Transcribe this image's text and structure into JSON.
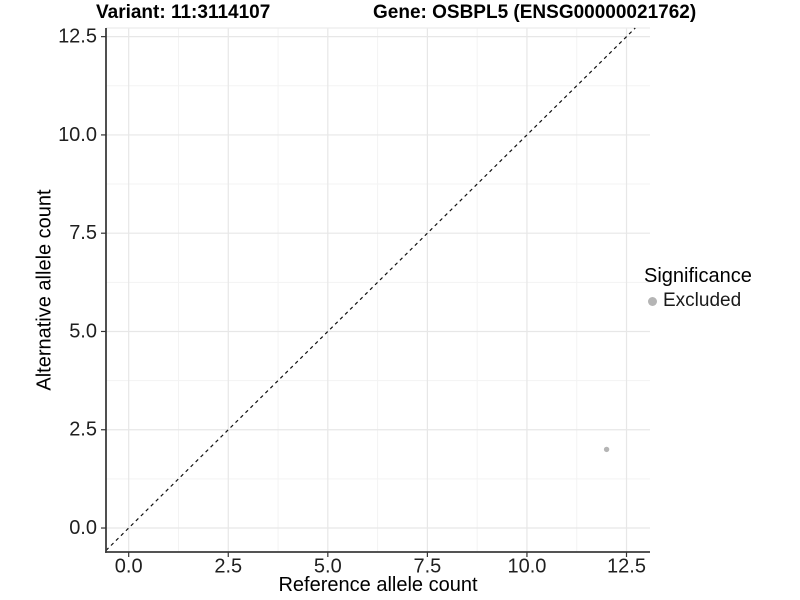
{
  "title": {
    "variant": "Variant: 11:3114107",
    "gene": "Gene: OSBPL5 (ENSG00000021762)"
  },
  "axes": {
    "x_label": "Reference allele count",
    "y_label": "Alternative allele count"
  },
  "legend": {
    "title": "Significance",
    "items": [
      {
        "label": "Excluded"
      }
    ]
  },
  "chart_data": {
    "type": "scatter",
    "title": "Variant: 11:3114107    Gene: OSBPL5 (ENSG00000021762)",
    "xlabel": "Reference allele count",
    "ylabel": "Alternative allele count",
    "x_ticks": [
      0.0,
      2.5,
      5.0,
      7.5,
      10.0,
      12.5
    ],
    "x_tick_labels": [
      "0.0",
      "2.5",
      "5.0",
      "7.5",
      "10.0",
      "12.5"
    ],
    "y_ticks": [
      0.0,
      2.5,
      5.0,
      7.5,
      10.0,
      12.5
    ],
    "y_tick_labels": [
      "0.0",
      "2.5",
      "5.0",
      "7.5",
      "10.0",
      "12.5"
    ],
    "x_minor_ticks": [
      1.25,
      3.75,
      6.25,
      8.75,
      11.25
    ],
    "y_minor_ticks": [
      1.25,
      3.75,
      6.25,
      8.75,
      11.25
    ],
    "xlim": [
      -0.57,
      13.09
    ],
    "ylim": [
      -0.61,
      12.72
    ],
    "grid": "major+minor",
    "legend_position": "right",
    "legend_title": "Significance",
    "reference_line": {
      "kind": "identity",
      "style": "dashed",
      "color": "#111111"
    },
    "series": [
      {
        "name": "Excluded",
        "color": "#b5b5b5",
        "points": [
          [
            12,
            2
          ]
        ]
      }
    ],
    "colors": {
      "major_grid": "#e7e7e7",
      "minor_grid": "#f3f3f3",
      "panel_border": "#ececec",
      "axis_line": "#3c3c3c",
      "tick": "#333333",
      "tick_label": "#1f1f1f",
      "point": "#b5b5b5"
    }
  }
}
